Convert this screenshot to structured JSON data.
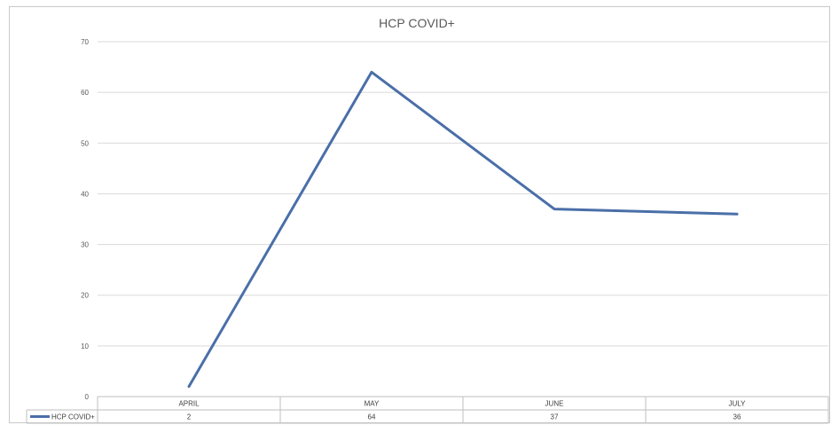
{
  "chart_data": {
    "type": "line",
    "title": "HCP COVID+",
    "categories": [
      "APRIL",
      "MAY",
      "JUNE",
      "JULY"
    ],
    "series": [
      {
        "name": "HCP COVID+",
        "values": [
          2,
          64,
          37,
          36
        ],
        "color": "#4a6fa8"
      }
    ],
    "yticks": [
      0,
      10,
      20,
      30,
      40,
      50,
      60,
      70
    ],
    "ylim": [
      0,
      70
    ],
    "grid": true,
    "legend": "data-table",
    "data_table": {
      "series_label": "HCP COVID+",
      "values": [
        "2",
        "64",
        "37",
        "36"
      ]
    }
  }
}
